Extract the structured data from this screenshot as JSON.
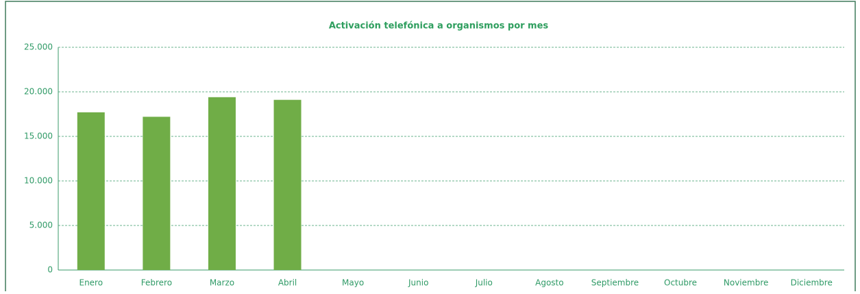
{
  "chart_data": {
    "type": "bar",
    "title": "Activación telefónica a organismos por mes",
    "categories": [
      "Enero",
      "Febrero",
      "Marzo",
      "Abril",
      "Mayo",
      "Junio",
      "Julio",
      "Agosto",
      "Septiembre",
      "Octubre",
      "Noviembre",
      "Diciembre"
    ],
    "values": [
      17700,
      17200,
      19400,
      19100,
      null,
      null,
      null,
      null,
      null,
      null,
      null,
      null
    ],
    "color": "#70ad47",
    "ylim": [
      0,
      25000
    ],
    "yticks": [
      0,
      {
        "value": 5000,
        "label": "5.000"
      },
      {
        "value": 10000,
        "label": "10.000"
      },
      {
        "value": 15000,
        "label": "15.000"
      },
      {
        "value": 20000,
        "label": "20.000"
      },
      {
        "value": 25000,
        "label": "25.000"
      }
    ],
    "grid": true
  }
}
